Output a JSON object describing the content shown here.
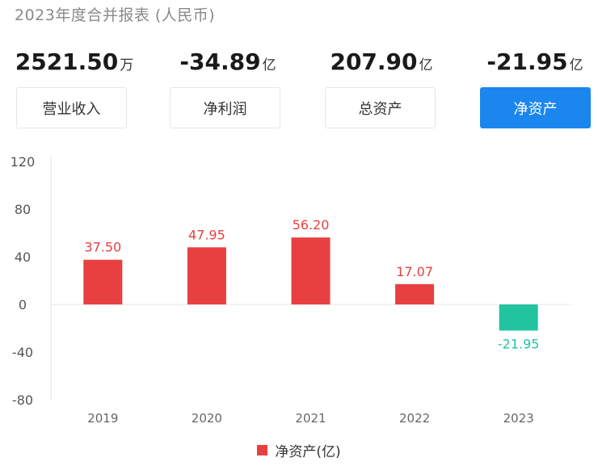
{
  "header": {
    "title": "2023年度合并报表 (人民币)"
  },
  "metrics": [
    {
      "value": "2521.50",
      "unit": "万",
      "label": "营业收入"
    },
    {
      "value": "-34.89",
      "unit": "亿",
      "label": "净利润"
    },
    {
      "value": "207.90",
      "unit": "亿",
      "label": "总资产"
    },
    {
      "value": "-21.95",
      "unit": "亿",
      "label": "净资产"
    }
  ],
  "active_tab": 3,
  "colors": {
    "positive": "#e84040",
    "negative": "#22c4a0",
    "accent": "#1b86ee"
  },
  "chart_data": {
    "type": "bar",
    "categories": [
      "2019",
      "2020",
      "2021",
      "2022",
      "2023"
    ],
    "series": [
      {
        "name": "净资产(亿)",
        "values": [
          37.5,
          47.95,
          56.2,
          17.07,
          -21.95
        ]
      }
    ],
    "data_labels": [
      "37.50",
      "47.95",
      "56.20",
      "17.07",
      "-21.95"
    ],
    "y_ticks": [
      "120",
      "80",
      "40",
      "0",
      "-40",
      "-80"
    ],
    "ylim": [
      -80,
      120
    ],
    "grid": false,
    "legend_position": "bottom"
  },
  "legend": {
    "label": "净资产(亿)"
  }
}
